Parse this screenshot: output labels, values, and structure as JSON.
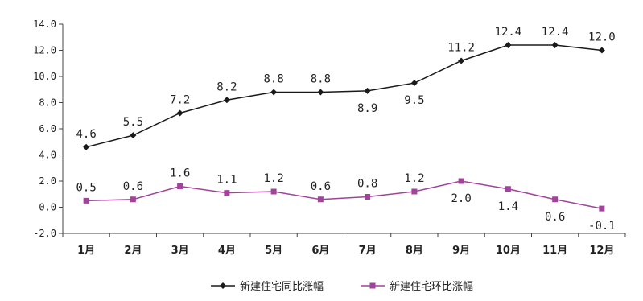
{
  "chart_data": {
    "type": "line",
    "categories": [
      "1月",
      "2月",
      "3月",
      "4月",
      "5月",
      "6月",
      "7月",
      "8月",
      "9月",
      "10月",
      "11月",
      "12月"
    ],
    "ylim": [
      -2.0,
      14.0
    ],
    "yticks": [
      "-2.0",
      "0.0",
      "2.0",
      "4.0",
      "6.0",
      "8.0",
      "10.0",
      "12.0",
      "14.0"
    ],
    "grid": false,
    "legend_position": "bottom",
    "series": [
      {
        "name": "新建住宅同比涨幅",
        "color": "#1a1a1a",
        "marker": "diamond",
        "values": [
          4.6,
          5.5,
          7.2,
          8.2,
          8.8,
          8.8,
          8.9,
          9.5,
          11.2,
          12.4,
          12.4,
          12.0
        ],
        "labels": [
          "4.6",
          "5.5",
          "7.2",
          "8.2",
          "8.8",
          "8.8",
          "8.9",
          "9.5",
          "11.2",
          "12.4",
          "12.4",
          "12.0"
        ]
      },
      {
        "name": "新建住宅环比涨幅",
        "color": "#a0449a",
        "marker": "square",
        "values": [
          0.5,
          0.6,
          1.6,
          1.1,
          1.2,
          0.6,
          0.8,
          1.2,
          2.0,
          1.4,
          0.6,
          -0.1
        ],
        "labels": [
          "0.5",
          "0.6",
          "1.6",
          "1.1",
          "1.2",
          "0.6",
          "0.8",
          "1.2",
          "2.0",
          "1.4",
          "0.6",
          "-0.1"
        ]
      }
    ]
  }
}
